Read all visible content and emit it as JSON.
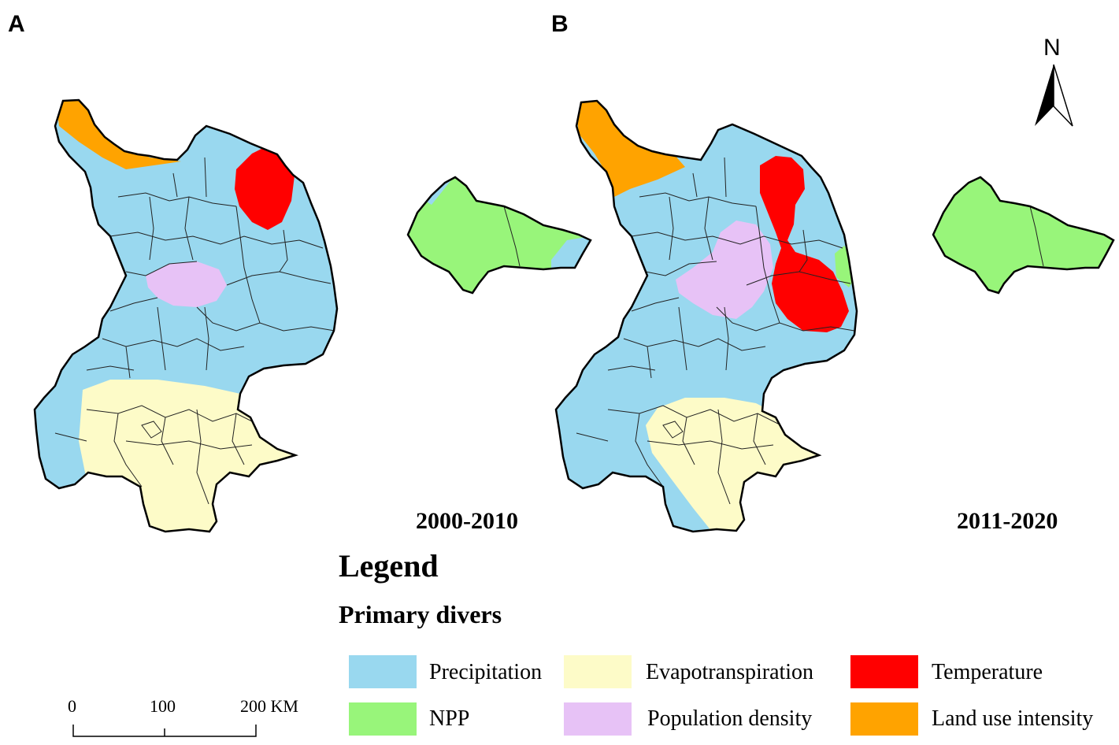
{
  "panels": [
    {
      "letter": "A",
      "period": "2000-2010"
    },
    {
      "letter": "B",
      "period": "2011-2020"
    }
  ],
  "north": {
    "label": "N"
  },
  "legend": {
    "title": "Legend",
    "subtitle": "Primary divers",
    "items": [
      {
        "label": "Precipitation",
        "color": "#99d8ef"
      },
      {
        "label": "Evapotranspiration",
        "color": "#fdfbc8"
      },
      {
        "label": "Temperature",
        "color": "#ff0000"
      },
      {
        "label": "NPP",
        "color": "#98f57a"
      },
      {
        "label": "Population density",
        "color": "#e7c2f6"
      },
      {
        "label": "Land use intensity",
        "color": "#ffa300"
      }
    ]
  },
  "scale_bar": {
    "ticks": [
      "0",
      "100",
      "200 KM"
    ]
  }
}
